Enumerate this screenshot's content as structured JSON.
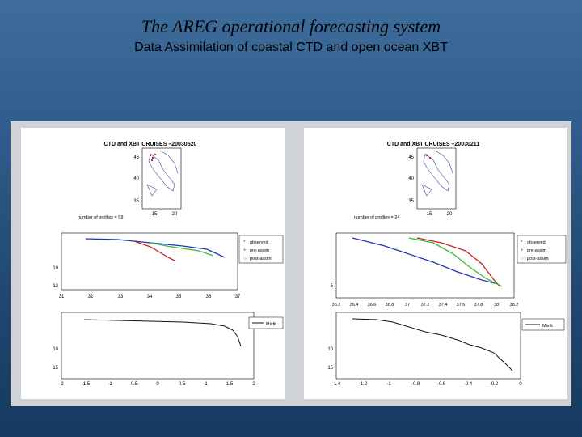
{
  "header": {
    "title": "The AREG operational forecasting system",
    "subtitle": "Data Assimilation of coastal CTD and open ocean XBT"
  },
  "panels": [
    {
      "map_title": "CTD and XBT CRUISES –20030520",
      "profiles_label": "number of profiles = 59",
      "map_lat_ticks": [
        "45",
        "40",
        "35"
      ],
      "map_lon_ticks": [
        "15",
        "20"
      ],
      "profile_y_ticks": [
        "10",
        "13"
      ],
      "profile_x_ticks": [
        "31",
        "32",
        "33",
        "34",
        "35",
        "36",
        "37"
      ],
      "legend": [
        "observed",
        "pre-assim",
        "post-assim"
      ],
      "misfit_y_ticks": [
        "10",
        "15"
      ],
      "misfit_x_ticks": [
        "-2",
        "-1.5",
        "-1",
        "-0.5",
        "0",
        "0.5",
        "1",
        "1.5",
        "2"
      ],
      "misfit_legend": "Misfit"
    },
    {
      "map_title": "CTD and XBT CRUISES –20030211",
      "profiles_label": "number of profiles = 24",
      "map_lat_ticks": [
        "45",
        "40",
        "35"
      ],
      "map_lon_ticks": [
        "15",
        "20"
      ],
      "profile_y_ticks": [
        "5"
      ],
      "profile_x_ticks": [
        "36.2",
        "36.4",
        "36.6",
        "36.8",
        "37",
        "37.2",
        "37.4",
        "37.6",
        "37.8",
        "38",
        "38.2"
      ],
      "legend": [
        "observed",
        "pre-assim",
        "post-assim"
      ],
      "misfit_y_ticks": [
        "10",
        "15"
      ],
      "misfit_x_ticks": [
        "-1.4",
        "-1.2",
        "-1",
        "-0.8",
        "-0.6",
        "-0.4",
        "-0.2",
        "0"
      ],
      "misfit_legend": "Misfit"
    }
  ],
  "colors": {
    "observed": "#2233bb",
    "pre_assim": "#cc2222",
    "post_assim": "#33bb33",
    "misfit": "#111111"
  }
}
